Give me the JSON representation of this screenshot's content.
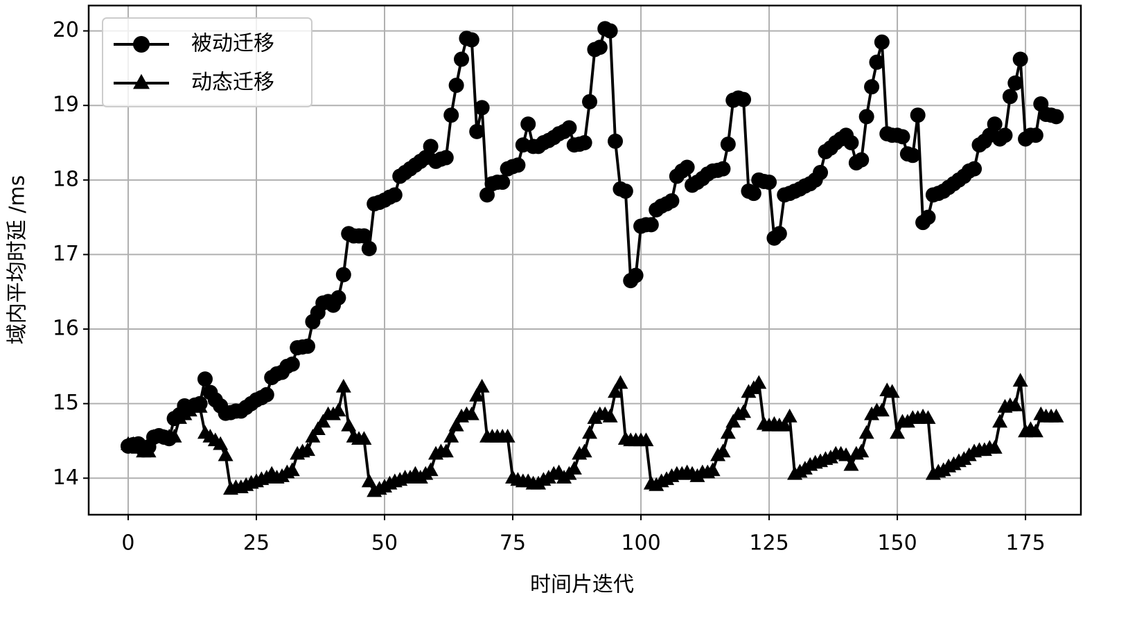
{
  "chart_data": {
    "type": "line",
    "xlabel": "时间片迭代",
    "ylabel": "域内平均时延 /ms",
    "x": [
      0,
      1,
      2,
      3,
      4,
      5,
      6,
      7,
      8,
      9,
      10,
      11,
      12,
      13,
      14,
      15,
      16,
      17,
      18,
      19,
      20,
      21,
      22,
      23,
      24,
      25,
      26,
      27,
      28,
      29,
      30,
      31,
      32,
      33,
      34,
      35,
      36,
      37,
      38,
      39,
      40,
      41,
      42,
      43,
      44,
      45,
      46,
      47,
      48,
      49,
      50,
      51,
      52,
      53,
      54,
      55,
      56,
      57,
      58,
      59,
      60,
      61,
      62,
      63,
      64,
      65,
      66,
      67,
      68,
      69,
      70,
      71,
      72,
      73,
      74,
      75,
      76,
      77,
      78,
      79,
      80,
      81,
      82,
      83,
      84,
      85,
      86,
      87,
      88,
      89,
      90,
      91,
      92,
      93,
      94,
      95,
      96,
      97,
      98,
      99,
      100,
      101,
      102,
      103,
      104,
      105,
      106,
      107,
      108,
      109,
      110,
      111,
      112,
      113,
      114,
      115,
      116,
      117,
      118,
      119,
      120,
      121,
      122,
      123,
      124,
      125,
      126,
      127,
      128,
      129,
      130,
      131,
      132,
      133,
      134,
      135,
      136,
      137,
      138,
      139,
      140,
      141,
      142,
      143,
      144,
      145,
      146,
      147,
      148,
      149,
      150,
      151,
      152,
      153,
      154,
      155,
      156,
      157,
      158,
      159,
      160,
      161,
      162,
      163,
      164,
      165,
      166,
      167,
      168,
      169,
      170,
      171,
      172,
      173,
      174,
      175,
      176,
      177,
      178,
      179,
      180,
      181
    ],
    "series": [
      {
        "name": "被动迁移",
        "color": "#000000",
        "marker": "circle",
        "values": [
          14.43,
          14.45,
          14.46,
          14.38,
          14.42,
          14.55,
          14.57,
          14.55,
          14.53,
          14.8,
          14.85,
          14.97,
          14.95,
          14.98,
          15.0,
          15.33,
          15.15,
          15.05,
          14.97,
          14.87,
          14.88,
          14.9,
          14.9,
          14.95,
          15.0,
          15.05,
          15.08,
          15.12,
          15.35,
          15.4,
          15.42,
          15.5,
          15.53,
          15.75,
          15.76,
          15.77,
          16.1,
          16.22,
          16.35,
          16.37,
          16.32,
          16.42,
          16.73,
          17.28,
          17.25,
          17.25,
          17.25,
          17.08,
          17.68,
          17.7,
          17.73,
          17.77,
          17.8,
          18.05,
          18.1,
          18.15,
          18.2,
          18.25,
          18.3,
          18.45,
          18.25,
          18.28,
          18.3,
          18.87,
          19.27,
          19.62,
          19.9,
          19.88,
          18.65,
          18.97,
          17.8,
          17.95,
          17.97,
          17.97,
          18.15,
          18.18,
          18.2,
          18.47,
          18.75,
          18.45,
          18.45,
          18.5,
          18.53,
          18.57,
          18.62,
          18.65,
          18.7,
          18.47,
          18.48,
          18.5,
          19.05,
          19.75,
          19.78,
          20.03,
          20.0,
          18.52,
          17.88,
          17.85,
          16.65,
          16.72,
          17.38,
          17.4,
          17.4,
          17.6,
          17.65,
          17.68,
          17.72,
          18.05,
          18.12,
          18.17,
          17.93,
          17.97,
          18.02,
          18.08,
          18.12,
          18.13,
          18.15,
          18.48,
          19.07,
          19.1,
          19.08,
          17.85,
          17.82,
          18.0,
          17.98,
          17.97,
          17.22,
          17.28,
          17.8,
          17.82,
          17.85,
          17.88,
          17.92,
          17.95,
          18.0,
          18.1,
          18.38,
          18.43,
          18.5,
          18.55,
          18.6,
          18.5,
          18.23,
          18.27,
          18.85,
          19.25,
          19.58,
          19.85,
          18.62,
          18.6,
          18.6,
          18.58,
          18.35,
          18.33,
          18.87,
          17.43,
          17.5,
          17.8,
          17.82,
          17.85,
          17.9,
          17.95,
          18.0,
          18.05,
          18.12,
          18.15,
          18.47,
          18.52,
          18.6,
          18.75,
          18.55,
          18.6,
          19.12,
          19.3,
          19.62,
          18.55,
          18.6,
          18.6,
          19.02,
          18.88,
          18.87,
          18.85
        ]
      },
      {
        "name": "动态迁移",
        "color": "#000000",
        "marker": "triangle",
        "values": [
          14.45,
          14.45,
          14.4,
          14.35,
          14.35,
          14.55,
          14.55,
          14.55,
          14.55,
          14.55,
          14.8,
          14.85,
          14.9,
          14.95,
          14.95,
          14.6,
          14.55,
          14.5,
          14.45,
          14.3,
          13.85,
          13.87,
          13.87,
          13.9,
          13.93,
          13.95,
          13.98,
          14.0,
          14.05,
          14.0,
          14.02,
          14.07,
          14.1,
          14.32,
          14.35,
          14.37,
          14.55,
          14.65,
          14.75,
          14.85,
          14.85,
          14.9,
          15.22,
          14.7,
          14.55,
          14.52,
          14.52,
          13.95,
          13.82,
          13.85,
          13.88,
          13.92,
          13.95,
          13.97,
          14.0,
          14.0,
          14.05,
          14.0,
          14.05,
          14.1,
          14.32,
          14.35,
          14.35,
          14.55,
          14.7,
          14.82,
          14.85,
          14.85,
          15.1,
          15.22,
          14.55,
          14.55,
          14.55,
          14.55,
          14.55,
          14.0,
          13.97,
          13.95,
          13.95,
          13.92,
          13.92,
          13.97,
          14.0,
          14.05,
          14.07,
          14.0,
          14.05,
          14.12,
          14.32,
          14.35,
          14.6,
          14.8,
          14.85,
          14.85,
          14.82,
          15.15,
          15.27,
          14.52,
          14.5,
          14.5,
          14.5,
          14.5,
          13.92,
          13.9,
          13.95,
          13.98,
          14.02,
          14.05,
          14.05,
          14.07,
          14.05,
          14.02,
          14.07,
          14.07,
          14.1,
          14.3,
          14.35,
          14.6,
          14.75,
          14.85,
          14.88,
          15.15,
          15.2,
          15.27,
          14.72,
          14.7,
          14.72,
          14.7,
          14.7,
          14.82,
          14.05,
          14.08,
          14.12,
          14.17,
          14.2,
          14.22,
          14.25,
          14.27,
          14.32,
          14.32,
          14.3,
          14.17,
          14.32,
          14.35,
          14.6,
          14.85,
          14.9,
          14.9,
          15.17,
          15.15,
          14.6,
          14.75,
          14.75,
          14.8,
          14.8,
          14.82,
          14.8,
          14.05,
          14.08,
          14.1,
          14.15,
          14.18,
          14.22,
          14.25,
          14.3,
          14.35,
          14.37,
          14.37,
          14.4,
          14.4,
          14.75,
          14.95,
          14.97,
          14.97,
          15.3,
          14.62,
          14.65,
          14.62,
          14.85,
          14.82,
          14.82,
          14.82
        ]
      }
    ],
    "xlim": [
      -7.7,
      185.8
    ],
    "ylim": [
      13.51,
      20.34
    ],
    "xticks": [
      0,
      25,
      50,
      75,
      100,
      125,
      150,
      175
    ],
    "yticks": [
      14,
      15,
      16,
      17,
      18,
      19,
      20
    ],
    "grid": true,
    "legend": "upper left"
  }
}
